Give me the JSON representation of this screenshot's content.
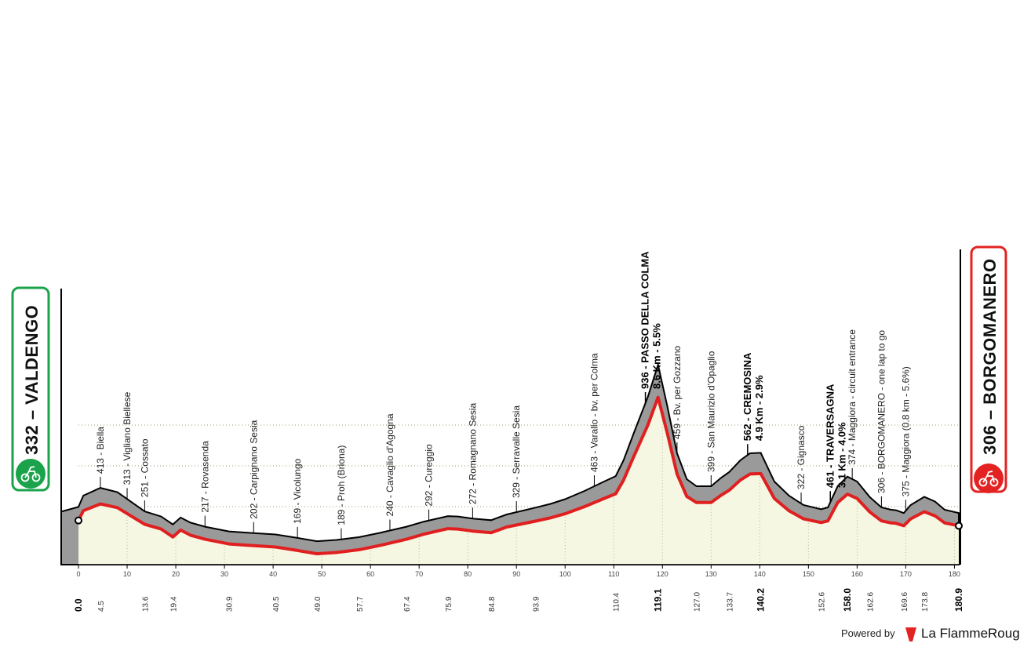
{
  "chart_data": {
    "type": "area",
    "xlim": [
      0,
      180.9
    ],
    "ylim": [
      0,
      1000
    ],
    "x_ticks": [
      0,
      10,
      20,
      30,
      40,
      50,
      60,
      70,
      80,
      90,
      100,
      110,
      120,
      130,
      140,
      150,
      160,
      170,
      180
    ],
    "y_ticks": [
      200,
      400,
      600,
      800
    ],
    "grid": "dotted",
    "terrain_profile": {
      "x": [
        0,
        1,
        4.5,
        8,
        13.6,
        17,
        19.4,
        21,
        23,
        26,
        30.9,
        35,
        40.5,
        45,
        49,
        53,
        57.7,
        62,
        67.4,
        71,
        75.9,
        78,
        81,
        84.8,
        88,
        93.9,
        97,
        100,
        104,
        108,
        110.4,
        112,
        114,
        117,
        119.1,
        121,
        123,
        125,
        127,
        130,
        132,
        133.7,
        136,
        138,
        140.2,
        143,
        146,
        149,
        152.6,
        154,
        156,
        158,
        160,
        162.6,
        165,
        167,
        168,
        169.6,
        171,
        173.8,
        176,
        178,
        180.9
      ],
      "y": [
        332,
        380,
        413,
        395,
        313,
        290,
        251,
        285,
        260,
        240,
        217,
        210,
        202,
        185,
        169,
        175,
        189,
        210,
        240,
        265,
        292,
        290,
        280,
        272,
        300,
        329,
        345,
        365,
        400,
        440,
        463,
        530,
        640,
        800,
        936,
        760,
        560,
        450,
        420,
        420,
        455,
        480,
        530,
        560,
        562,
        440,
        380,
        340,
        322,
        330,
        420,
        461,
        440,
        374,
        330,
        320,
        318,
        306,
        340,
        375,
        355,
        320,
        306
      ]
    },
    "points_of_interest": [
      {
        "km": 0.0,
        "label": "332 – VALDENGO",
        "type": "start"
      },
      {
        "km": 4.5,
        "label": "413 - Biella"
      },
      {
        "km": 10,
        "label": "313 - Vigliano Biellese"
      },
      {
        "km": 13.6,
        "label": "251 - Cossato"
      },
      {
        "km": 26,
        "label": "217 - Rovasenda"
      },
      {
        "km": 36,
        "label": "202 - Carpignano Sesia"
      },
      {
        "km": 45,
        "label": "169 - Vicolungo"
      },
      {
        "km": 54,
        "label": "189 - Proh (Briona)"
      },
      {
        "km": 64,
        "label": "240 - Cavaglio d'Agogna"
      },
      {
        "km": 72,
        "label": "292 - Cureggio"
      },
      {
        "km": 81,
        "label": "272 - Romagnano Sesia"
      },
      {
        "km": 90,
        "label": "329 - Serravalle Sesia"
      },
      {
        "km": 106,
        "label": "463 - Varallo - bv. per Colma"
      },
      {
        "km": 116.5,
        "label": "936 - PASSO DELLA COLMA",
        "sub": "8.6 Km - 5.5%",
        "type": "climb"
      },
      {
        "km": 123,
        "label": "459 - Bv. per Gozzano"
      },
      {
        "km": 130,
        "label": "399 - San Maurizio d'Opaglio"
      },
      {
        "km": 137.5,
        "label": "562 - CREMOSINA",
        "sub": "4.9 Km - 2.9%",
        "type": "climb"
      },
      {
        "km": 148.5,
        "label": "322 - Gignasco"
      },
      {
        "km": 154.5,
        "label": "461 - TRAVERSAGNA",
        "sub": "3.1 Km - 4.0%",
        "type": "climb"
      },
      {
        "km": 159,
        "label": "374 - Maggiora - circuit entrance"
      },
      {
        "km": 165,
        "label": "306 - BORGOMANERO - one lap to go"
      },
      {
        "km": 170,
        "label": "375 - Maggiora (0.8 km - 5.6%)"
      },
      {
        "km": 180.9,
        "label": "306 – BORGOMANERO",
        "type": "finish"
      }
    ],
    "km_markers": [
      "0.0",
      "4.5",
      "13.6",
      "19.4",
      "30.9",
      "40.5",
      "49.0",
      "57.7",
      "67.4",
      "75.9",
      "84.8",
      "93.9",
      "110.4",
      "119.1",
      "127.0",
      "133.7",
      "140.2",
      "152.6",
      "158.0",
      "162.6",
      "169.6",
      "173.8",
      "180.9"
    ],
    "bold_km_markers": [
      "0.0",
      "119.1",
      "140.2",
      "158.0",
      "180.9"
    ]
  },
  "start": {
    "label": "332 – VALDENGO",
    "color": "#1aa34a"
  },
  "finish": {
    "label": "306 – BORGOMANERO",
    "color": "#e32322"
  },
  "footer": {
    "powered_by": "Powered by",
    "brand": "La FlammeRouge"
  },
  "colors": {
    "terrain": "#9a9a9a",
    "route": "#e02020",
    "fill": "#f6f7e2",
    "outline": "#000000"
  }
}
